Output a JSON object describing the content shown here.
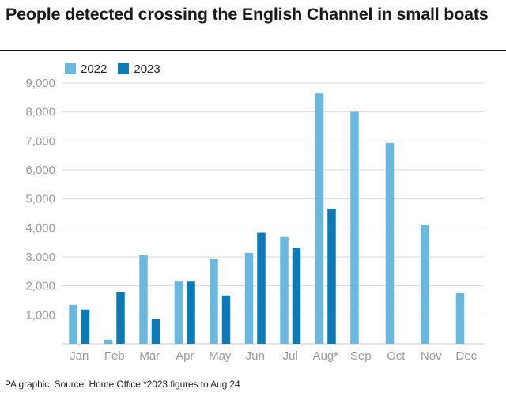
{
  "title": "People detected crossing the English Channel in small boats",
  "footer": "PA graphic. Source: Home Office *2023 figures to Aug 24",
  "colors": {
    "series_2022": "#6ab8df",
    "series_2023": "#0a7ab8",
    "grid": "#d9d9d9",
    "tick_text": "#9a9a9a"
  },
  "chart_data": {
    "type": "bar",
    "categories": [
      "Jan",
      "Feb",
      "Mar",
      "Apr",
      "May",
      "Jun",
      "Jul",
      "Aug*",
      "Sep",
      "Oct",
      "Nov",
      "Dec"
    ],
    "series": [
      {
        "name": "2022",
        "values": [
          1340,
          140,
          3060,
          2150,
          2920,
          3140,
          3690,
          8640,
          8000,
          6930,
          4090,
          1750
        ]
      },
      {
        "name": "2023",
        "values": [
          1180,
          1780,
          850,
          2150,
          1670,
          3830,
          3300,
          4660,
          null,
          null,
          null,
          null
        ]
      }
    ],
    "yticks": [
      1000,
      2000,
      3000,
      4000,
      5000,
      6000,
      7000,
      8000,
      9000
    ],
    "ytick_labels": [
      "1,000",
      "2,000",
      "3,000",
      "4,000",
      "5,000",
      "6,000",
      "7,000",
      "8,000",
      "9,000"
    ],
    "ylim": [
      0,
      9000
    ],
    "legend_position": "top-left",
    "grid": true
  }
}
